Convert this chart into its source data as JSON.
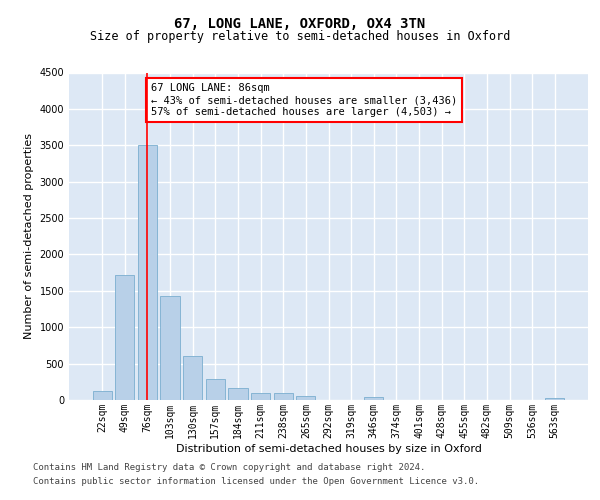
{
  "title": "67, LONG LANE, OXFORD, OX4 3TN",
  "subtitle": "Size of property relative to semi-detached houses in Oxford",
  "xlabel": "Distribution of semi-detached houses by size in Oxford",
  "ylabel": "Number of semi-detached properties",
  "categories": [
    "22sqm",
    "49sqm",
    "76sqm",
    "103sqm",
    "130sqm",
    "157sqm",
    "184sqm",
    "211sqm",
    "238sqm",
    "265sqm",
    "292sqm",
    "319sqm",
    "346sqm",
    "374sqm",
    "401sqm",
    "428sqm",
    "455sqm",
    "482sqm",
    "509sqm",
    "536sqm",
    "563sqm"
  ],
  "values": [
    120,
    1720,
    3500,
    1430,
    610,
    290,
    160,
    100,
    90,
    60,
    0,
    0,
    40,
    0,
    0,
    0,
    0,
    0,
    0,
    0,
    30
  ],
  "bar_color": "#b8d0e8",
  "bar_edge_color": "#7aaed0",
  "vline_x_index": 2,
  "vline_color": "red",
  "annotation_text": "67 LONG LANE: 86sqm\n← 43% of semi-detached houses are smaller (3,436)\n57% of semi-detached houses are larger (4,503) →",
  "annotation_box_color": "white",
  "annotation_box_edge_color": "red",
  "ylim": [
    0,
    4500
  ],
  "yticks": [
    0,
    500,
    1000,
    1500,
    2000,
    2500,
    3000,
    3500,
    4000,
    4500
  ],
  "footer_line1": "Contains HM Land Registry data © Crown copyright and database right 2024.",
  "footer_line2": "Contains public sector information licensed under the Open Government Licence v3.0.",
  "background_color": "#dde8f5",
  "grid_color": "white",
  "title_fontsize": 10,
  "subtitle_fontsize": 8.5,
  "axis_label_fontsize": 8,
  "tick_fontsize": 7,
  "footer_fontsize": 6.5,
  "annotation_fontsize": 7.5
}
